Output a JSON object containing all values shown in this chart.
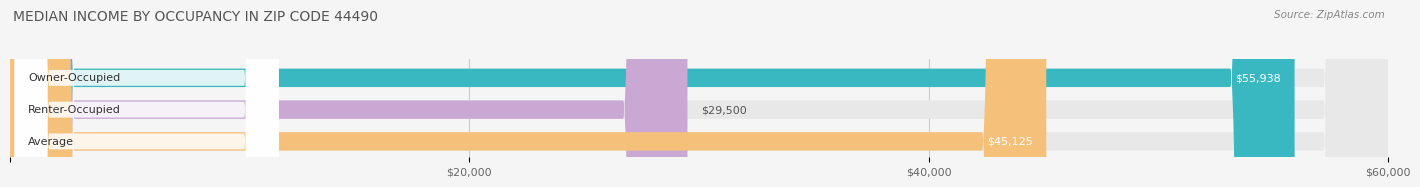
{
  "title": "MEDIAN INCOME BY OCCUPANCY IN ZIP CODE 44490",
  "source": "Source: ZipAtlas.com",
  "categories": [
    "Owner-Occupied",
    "Renter-Occupied",
    "Average"
  ],
  "values": [
    55938,
    29500,
    45125
  ],
  "labels": [
    "$55,938",
    "$29,500",
    "$45,125"
  ],
  "bar_colors": [
    "#3ab8c2",
    "#c9a8d4",
    "#f5c07a"
  ],
  "background_color": "#f5f5f5",
  "full_bar_color": "#e8e8e8",
  "xlim": [
    0,
    60000
  ],
  "xticks": [
    0,
    20000,
    40000,
    60000
  ],
  "xticklabels": [
    "",
    "$20,000",
    "$40,000",
    "$60,000"
  ],
  "title_fontsize": 10,
  "label_fontsize": 8,
  "tick_fontsize": 8,
  "bar_height": 0.58,
  "label_color_inside": "#ffffff",
  "label_color_outside": "#555555",
  "cat_label_color": "#333333"
}
